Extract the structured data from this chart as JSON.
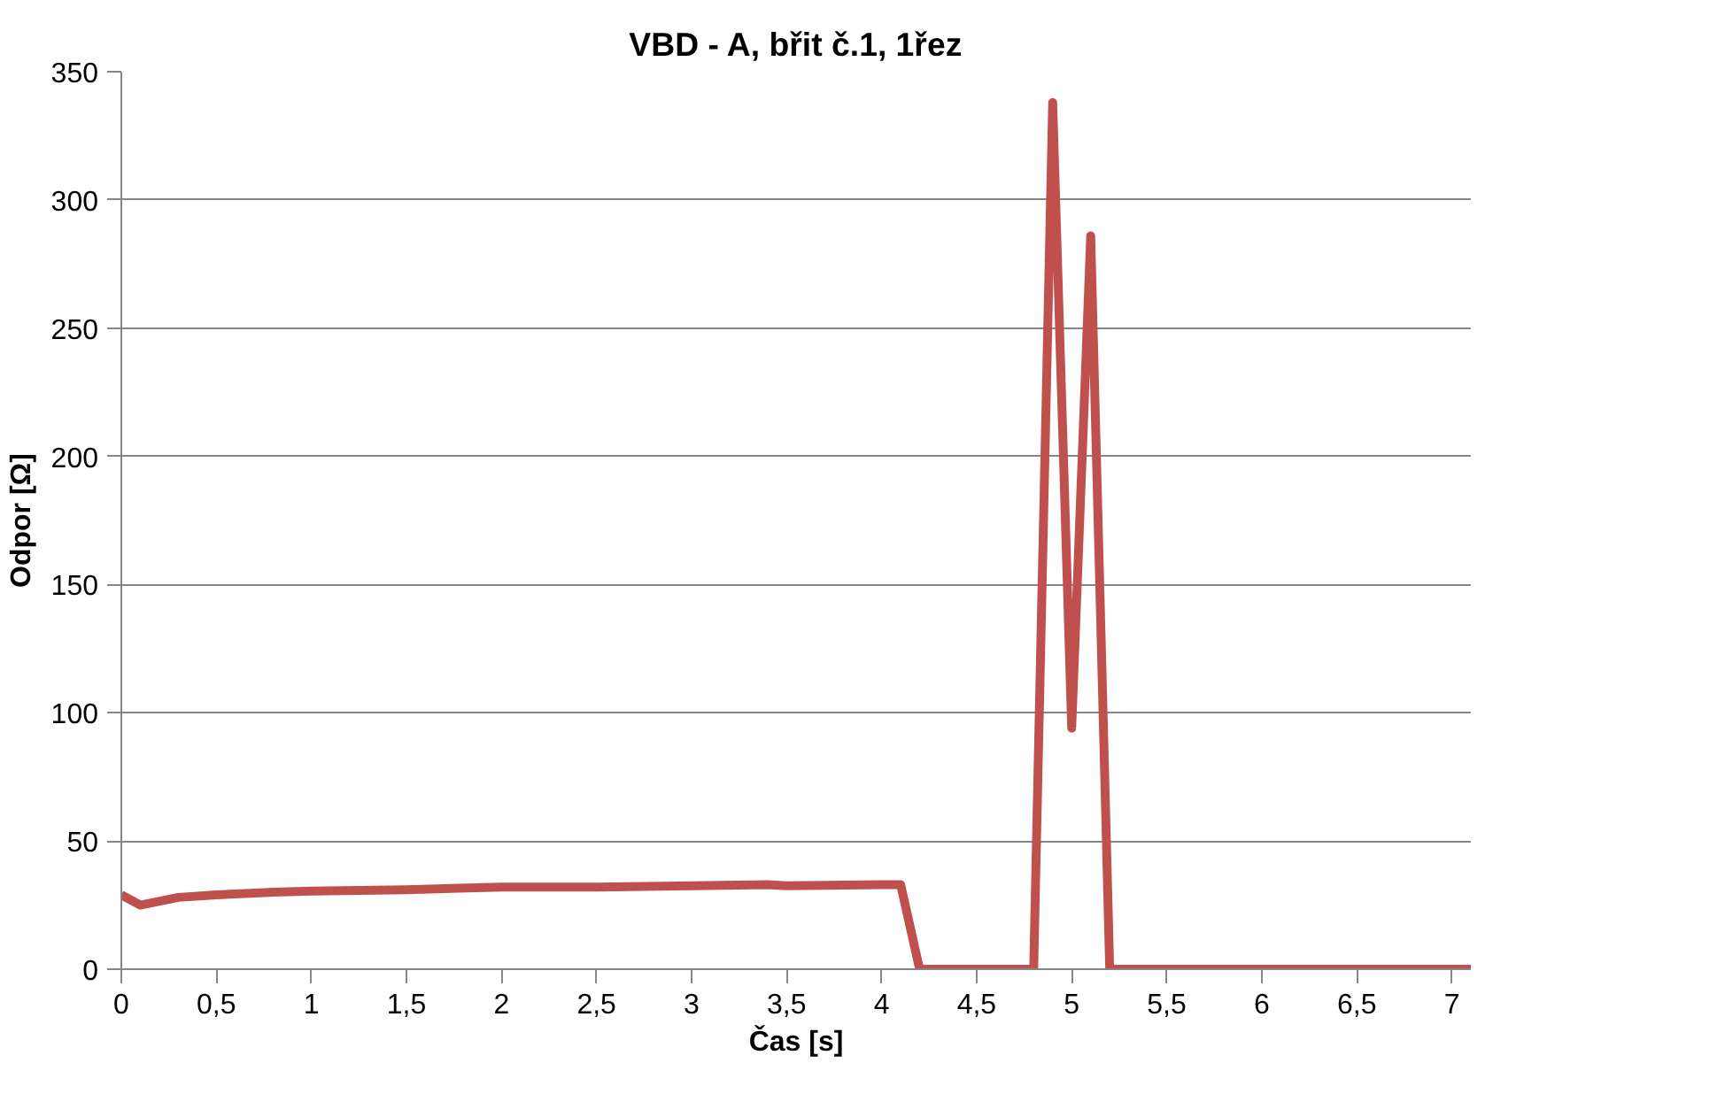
{
  "chart_data": {
    "type": "line",
    "title": "VBD - A, břit č.1, 1řez",
    "xlabel": "Čas [s]",
    "ylabel": "Odpor [Ω]",
    "x": [
      0,
      0.1,
      0.3,
      0.5,
      0.8,
      1,
      1.5,
      2,
      2.5,
      3,
      3.4,
      3.5,
      4,
      4.1,
      4.2,
      4.8,
      4.9,
      5.0,
      5.1,
      5.2,
      7.1
    ],
    "series": [
      {
        "color": "#c0504d",
        "values": [
          29,
          25,
          28,
          29,
          30,
          30.5,
          31,
          32,
          32,
          32.5,
          33,
          32.5,
          33,
          33,
          0,
          0,
          338,
          94,
          286,
          0,
          0
        ]
      }
    ],
    "xlim": [
      0,
      7.1
    ],
    "ylim": [
      0,
      350
    ],
    "xticks": [
      0,
      {
        "value": 0.5,
        "label": "0,5"
      },
      1,
      {
        "value": 1.5,
        "label": "1,5"
      },
      2,
      {
        "value": 2.5,
        "label": "2,5"
      },
      3,
      {
        "value": 3.5,
        "label": "3,5"
      },
      4,
      {
        "value": 4.5,
        "label": "4,5"
      },
      5,
      {
        "value": 5.5,
        "label": "5,5"
      },
      6,
      {
        "value": 6.5,
        "label": "6,5"
      },
      7
    ],
    "yticks": [
      0,
      50,
      100,
      150,
      200,
      250,
      300,
      350
    ],
    "grid": "y",
    "marker": "none",
    "line_style": "solid"
  }
}
